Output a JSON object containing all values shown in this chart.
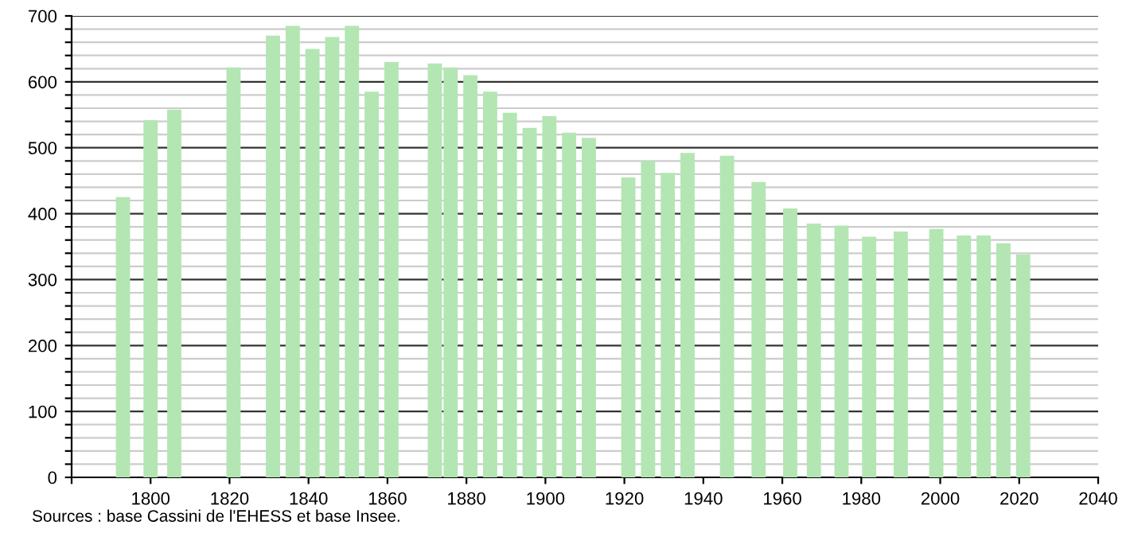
{
  "chart_data": {
    "type": "bar",
    "x": [
      1793,
      1800,
      1806,
      1821,
      1831,
      1836,
      1841,
      1846,
      1851,
      1856,
      1861,
      1872,
      1876,
      1881,
      1886,
      1891,
      1896,
      1901,
      1906,
      1911,
      1921,
      1926,
      1931,
      1936,
      1946,
      1954,
      1962,
      1968,
      1975,
      1982,
      1990,
      1999,
      2006,
      2011,
      2016,
      2021
    ],
    "values": [
      425,
      542,
      558,
      622,
      670,
      685,
      650,
      668,
      685,
      585,
      630,
      628,
      622,
      610,
      585,
      553,
      530,
      548,
      523,
      515,
      455,
      480,
      462,
      492,
      488,
      448,
      408,
      385,
      382,
      365,
      373,
      377,
      367,
      367,
      355,
      338
    ],
    "color": "#b3e6b3",
    "xlim": [
      1780,
      2040
    ],
    "xticks": [
      {
        "value": 1780,
        "label": null
      },
      1800,
      1820,
      1840,
      1860,
      1880,
      1900,
      1920,
      1940,
      1960,
      1980,
      2000,
      2020,
      2040
    ],
    "ylim": [
      0,
      700
    ],
    "yticks": [
      0,
      {
        "value": 20,
        "label": null
      },
      {
        "value": 40,
        "label": null
      },
      {
        "value": 60,
        "label": null
      },
      {
        "value": 80,
        "label": null
      },
      100,
      {
        "value": 120,
        "label": null
      },
      {
        "value": 140,
        "label": null
      },
      {
        "value": 160,
        "label": null
      },
      {
        "value": 180,
        "label": null
      },
      200,
      {
        "value": 220,
        "label": null
      },
      {
        "value": 240,
        "label": null
      },
      {
        "value": 260,
        "label": null
      },
      {
        "value": 280,
        "label": null
      },
      300,
      {
        "value": 320,
        "label": null
      },
      {
        "value": 340,
        "label": null
      },
      {
        "value": 360,
        "label": null
      },
      {
        "value": 380,
        "label": null
      },
      400,
      {
        "value": 420,
        "label": null
      },
      {
        "value": 440,
        "label": null
      },
      {
        "value": 460,
        "label": null
      },
      {
        "value": 480,
        "label": null
      },
      500,
      {
        "value": 520,
        "label": null
      },
      {
        "value": 540,
        "label": null
      },
      {
        "value": 560,
        "label": null
      },
      {
        "value": 580,
        "label": null
      },
      600,
      {
        "value": 620,
        "label": null
      },
      {
        "value": 640,
        "label": null
      },
      {
        "value": 660,
        "label": null
      },
      {
        "value": 680,
        "label": null
      },
      700
    ],
    "grid": "y",
    "annotations": [
      "Sources : base Cassini de l'EHESS et base Insee."
    ]
  }
}
